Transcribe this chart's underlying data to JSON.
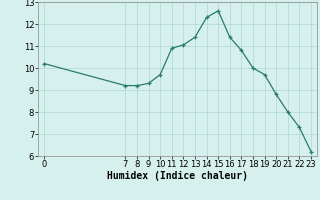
{
  "x": [
    0,
    7,
    8,
    9,
    10,
    11,
    12,
    13,
    14,
    15,
    16,
    17,
    18,
    19,
    20,
    21,
    22,
    23
  ],
  "y": [
    10.2,
    9.2,
    9.2,
    9.3,
    9.7,
    10.9,
    11.05,
    11.4,
    12.3,
    12.6,
    11.4,
    10.8,
    10.0,
    9.7,
    8.8,
    8.0,
    7.3,
    6.2
  ],
  "line_color": "#2a7a6e",
  "marker_color": "#2a7a6e",
  "bg_color": "#d6f0ed",
  "grid_color": "#aed8d3",
  "xlabel": "Humidex (Indice chaleur)",
  "xlabel_fontsize": 7,
  "tick_fontsize": 6,
  "xlim": [
    -0.5,
    23.5
  ],
  "ylim": [
    6,
    13
  ],
  "yticks": [
    6,
    7,
    8,
    9,
    10,
    11,
    12,
    13
  ],
  "xticks": [
    0,
    7,
    8,
    9,
    10,
    11,
    12,
    13,
    14,
    15,
    16,
    17,
    18,
    19,
    20,
    21,
    22,
    23
  ]
}
